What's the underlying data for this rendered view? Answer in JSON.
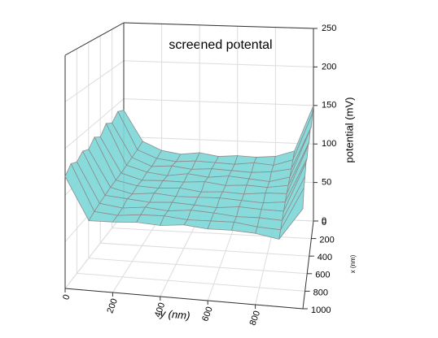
{
  "chart_data": {
    "type": "surface",
    "title": "screened potental",
    "x_label": "x (nm)",
    "y_label": "y (nm)",
    "z_label": "potential (mV)",
    "x": [
      0,
      100,
      200,
      300,
      400,
      500,
      600,
      700,
      800,
      900,
      1000
    ],
    "y": [
      0,
      100,
      200,
      300,
      400,
      500,
      600,
      700,
      800,
      900,
      1000
    ],
    "z": [
      [
        135,
        95,
        84,
        80,
        83,
        79,
        81,
        80,
        82,
        90,
        150
      ],
      [
        140,
        92,
        82,
        79,
        81,
        80,
        79,
        82,
        80,
        88,
        148
      ],
      [
        132,
        90,
        80,
        82,
        79,
        81,
        80,
        79,
        81,
        86,
        140
      ],
      [
        138,
        88,
        81,
        78,
        82,
        79,
        82,
        80,
        78,
        85,
        145
      ],
      [
        128,
        86,
        79,
        80,
        80,
        82,
        79,
        81,
        80,
        84,
        138
      ],
      [
        134,
        85,
        80,
        79,
        81,
        78,
        80,
        79,
        82,
        83,
        142
      ],
      [
        126,
        84,
        78,
        81,
        79,
        80,
        81,
        80,
        79,
        82,
        135
      ],
      [
        130,
        82,
        80,
        78,
        80,
        79,
        78,
        81,
        80,
        80,
        138
      ],
      [
        124,
        80,
        77,
        80,
        78,
        81,
        80,
        78,
        79,
        78,
        130
      ],
      [
        128,
        78,
        76,
        79,
        80,
        78,
        79,
        80,
        77,
        76,
        125
      ],
      [
        120,
        75,
        76,
        78,
        77,
        80,
        78,
        79,
        78,
        74,
        110
      ]
    ],
    "xlim": [
      0,
      1000
    ],
    "ylim": [
      0,
      1000
    ],
    "zlim": [
      0,
      250
    ],
    "xticks": [
      0,
      200,
      400,
      600,
      800,
      1000
    ],
    "yticks": [
      0,
      200,
      400,
      600,
      800
    ],
    "zticks": [
      0,
      50,
      100,
      150,
      200,
      250
    ],
    "color": "#7fd8d8",
    "mesh_color": "#8c8c8c",
    "grid": true
  }
}
